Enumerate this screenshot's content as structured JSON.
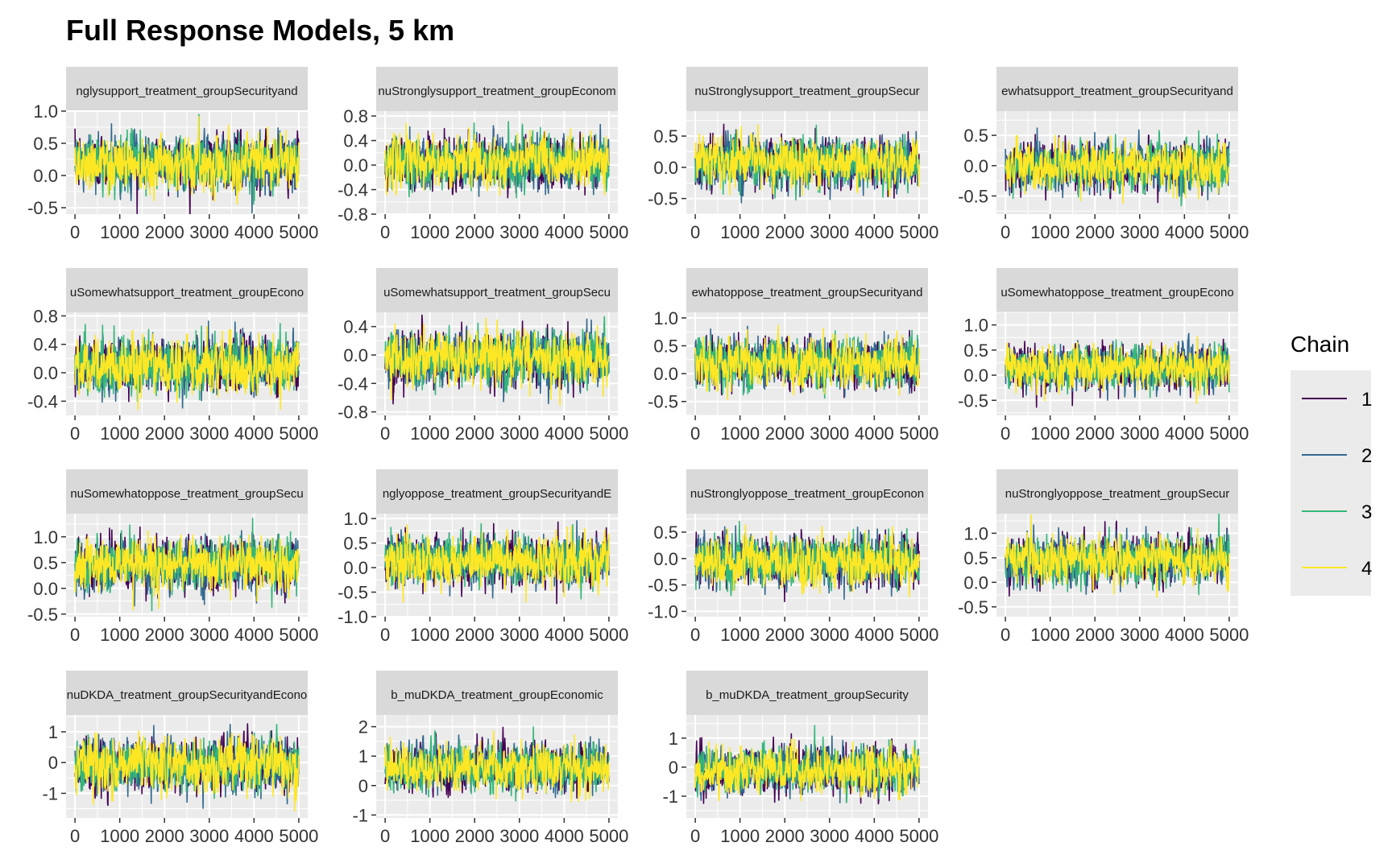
{
  "title": "Full Response Models, 5 km",
  "legend": {
    "title": "Chain",
    "entries": [
      {
        "label": "1",
        "color": "#440154"
      },
      {
        "label": "2",
        "color": "#31688E"
      },
      {
        "label": "3",
        "color": "#35B779"
      },
      {
        "label": "4",
        "color": "#FDE725"
      }
    ]
  },
  "colors": {
    "panel_bg": "#EBEBEB",
    "strip_bg": "#D9D9D9",
    "grid": "#FFFFFF",
    "legend_bg": "#EBEBEB"
  },
  "chart_data": [
    {
      "type": "line",
      "strip": "nglysupport_treatment_groupSecurityand",
      "x_ticks": [
        0,
        1000,
        2000,
        3000,
        4000,
        5000
      ],
      "y_ticks": [
        1.0,
        0.5,
        0.0,
        -0.5
      ],
      "y_tick_labels": [
        "1.0",
        "0.5",
        "0.0",
        "-0.5"
      ],
      "xlim": [
        -200,
        5200
      ],
      "ylim": [
        -0.6,
        1.0
      ],
      "center": 0.2,
      "spread": 0.22,
      "draws": 5000
    },
    {
      "type": "line",
      "strip": "nuStronglysupport_treatment_groupEconom",
      "x_ticks": [
        0,
        1000,
        2000,
        3000,
        4000,
        5000
      ],
      "y_ticks": [
        0.8,
        0.4,
        0.0,
        -0.4,
        -0.8
      ],
      "y_tick_labels": [
        "0.8",
        "0.4",
        "0.0",
        "-0.4",
        "-0.8"
      ],
      "xlim": [
        -200,
        5200
      ],
      "ylim": [
        -0.8,
        0.88
      ],
      "center": 0.05,
      "spread": 0.22,
      "draws": 5000
    },
    {
      "type": "line",
      "strip": "nuStronglysupport_treatment_groupSecur",
      "x_ticks": [
        0,
        1000,
        2000,
        3000,
        4000,
        5000
      ],
      "y_ticks": [
        0.5,
        0.0,
        -0.5
      ],
      "y_tick_labels": [
        "0.5",
        "0.0",
        "-0.5"
      ],
      "xlim": [
        -200,
        5200
      ],
      "ylim": [
        -0.75,
        0.9
      ],
      "center": 0.08,
      "spread": 0.2,
      "draws": 5000
    },
    {
      "type": "line",
      "strip": "ewhatsupport_treatment_groupSecurityand",
      "x_ticks": [
        0,
        1000,
        2000,
        3000,
        4000,
        5000
      ],
      "y_ticks": [
        0.5,
        0.0,
        -0.5
      ],
      "y_tick_labels": [
        "0.5",
        "0.0",
        "-0.5"
      ],
      "xlim": [
        -200,
        5200
      ],
      "ylim": [
        -0.8,
        0.9
      ],
      "center": 0.0,
      "spread": 0.2,
      "draws": 5000
    },
    {
      "type": "line",
      "strip": "uSomewhatsupport_treatment_groupEcono",
      "x_ticks": [
        0,
        1000,
        2000,
        3000,
        4000,
        5000
      ],
      "y_ticks": [
        0.8,
        0.4,
        0.0,
        -0.4
      ],
      "y_tick_labels": [
        "0.8",
        "0.4",
        "0.0",
        "-0.4"
      ],
      "xlim": [
        -200,
        5200
      ],
      "ylim": [
        -0.6,
        0.85
      ],
      "center": 0.1,
      "spread": 0.2,
      "draws": 5000
    },
    {
      "type": "line",
      "strip": "uSomewhatsupport_treatment_groupSecu",
      "x_ticks": [
        0,
        1000,
        2000,
        3000,
        4000,
        5000
      ],
      "y_ticks": [
        0.4,
        0.0,
        -0.4,
        -0.8
      ],
      "y_tick_labels": [
        "0.4",
        "0.0",
        "-0.4",
        "-0.8"
      ],
      "xlim": [
        -200,
        5200
      ],
      "ylim": [
        -0.85,
        0.6
      ],
      "center": -0.05,
      "spread": 0.2,
      "draws": 5000
    },
    {
      "type": "line",
      "strip": "ewhatoppose_treatment_groupSecurityand",
      "x_ticks": [
        0,
        1000,
        2000,
        3000,
        4000,
        5000
      ],
      "y_ticks": [
        1.0,
        0.5,
        0.0,
        -0.5
      ],
      "y_tick_labels": [
        "1.0",
        "0.5",
        "0.0",
        "-0.5"
      ],
      "xlim": [
        -200,
        5200
      ],
      "ylim": [
        -0.75,
        1.1
      ],
      "center": 0.2,
      "spread": 0.23,
      "draws": 5000
    },
    {
      "type": "line",
      "strip": "uSomewhatoppose_treatment_groupEcono",
      "x_ticks": [
        0,
        1000,
        2000,
        3000,
        4000,
        5000
      ],
      "y_ticks": [
        1.0,
        0.5,
        0.0,
        -0.5
      ],
      "y_tick_labels": [
        "1.0",
        "0.5",
        "0.0",
        "-0.5"
      ],
      "xlim": [
        -200,
        5200
      ],
      "ylim": [
        -0.8,
        1.25
      ],
      "center": 0.15,
      "spread": 0.22,
      "draws": 5000
    },
    {
      "type": "line",
      "strip": "nuSomewhatoppose_treatment_groupSecu",
      "x_ticks": [
        0,
        1000,
        2000,
        3000,
        4000,
        5000
      ],
      "y_ticks": [
        1.0,
        0.5,
        0.0,
        -0.5
      ],
      "y_tick_labels": [
        "1.0",
        "0.5",
        "0.0",
        "-0.5"
      ],
      "xlim": [
        -200,
        5200
      ],
      "ylim": [
        -0.55,
        1.45
      ],
      "center": 0.45,
      "spread": 0.27,
      "draws": 5000
    },
    {
      "type": "line",
      "strip": "nglyoppose_treatment_groupSecurityandE",
      "x_ticks": [
        0,
        1000,
        2000,
        3000,
        4000,
        5000
      ],
      "y_ticks": [
        1.0,
        0.5,
        0.0,
        -0.5,
        -1.0
      ],
      "y_tick_labels": [
        "1.0",
        "0.5",
        "0.0",
        "-0.5",
        "-1.0"
      ],
      "xlim": [
        -200,
        5200
      ],
      "ylim": [
        -1.0,
        1.1
      ],
      "center": 0.15,
      "spread": 0.27,
      "draws": 5000
    },
    {
      "type": "line",
      "strip": "nuStronglyoppose_treatment_groupEconon",
      "x_ticks": [
        0,
        1000,
        2000,
        3000,
        4000,
        5000
      ],
      "y_ticks": [
        0.5,
        0.0,
        -0.5,
        -1.0
      ],
      "y_tick_labels": [
        "0.5",
        "0.0",
        "-0.5",
        "-1.0"
      ],
      "xlim": [
        -200,
        5200
      ],
      "ylim": [
        -1.1,
        0.85
      ],
      "center": -0.05,
      "spread": 0.25,
      "draws": 5000
    },
    {
      "type": "line",
      "strip": "nuStronglyoppose_treatment_groupSecur",
      "x_ticks": [
        0,
        1000,
        2000,
        3000,
        4000,
        5000
      ],
      "y_ticks": [
        1.0,
        0.5,
        0.0,
        -0.5
      ],
      "y_tick_labels": [
        "1.0",
        "0.5",
        "0.0",
        "-0.5"
      ],
      "xlim": [
        -200,
        5200
      ],
      "ylim": [
        -0.7,
        1.4
      ],
      "center": 0.45,
      "spread": 0.26,
      "draws": 5000
    },
    {
      "type": "line",
      "strip": "nuDKDA_treatment_groupSecurityandEcono",
      "x_ticks": [
        0,
        1000,
        2000,
        3000,
        4000,
        5000
      ],
      "y_ticks": [
        1,
        0,
        -1
      ],
      "y_tick_labels": [
        "1",
        "0",
        "-1"
      ],
      "xlim": [
        -200,
        5200
      ],
      "ylim": [
        -1.8,
        1.55
      ],
      "center": -0.1,
      "spread": 0.45,
      "draws": 5000
    },
    {
      "type": "line",
      "strip": "b_muDKDA_treatment_groupEconomic",
      "x_ticks": [
        0,
        1000,
        2000,
        3000,
        4000,
        5000
      ],
      "y_ticks": [
        2,
        1,
        0,
        -1
      ],
      "y_tick_labels": [
        "2",
        "1",
        "0",
        "-1"
      ],
      "xlim": [
        -200,
        5200
      ],
      "ylim": [
        -1.1,
        2.4
      ],
      "center": 0.6,
      "spread": 0.42,
      "draws": 5000
    },
    {
      "type": "line",
      "strip": "b_muDKDA_treatment_groupSecurity",
      "x_ticks": [
        0,
        1000,
        2000,
        3000,
        4000,
        5000
      ],
      "y_ticks": [
        1,
        0,
        -1
      ],
      "y_tick_labels": [
        "1",
        "0",
        "-1"
      ],
      "xlim": [
        -200,
        5200
      ],
      "ylim": [
        -1.75,
        1.8
      ],
      "center": -0.1,
      "spread": 0.42,
      "draws": 5000
    }
  ]
}
